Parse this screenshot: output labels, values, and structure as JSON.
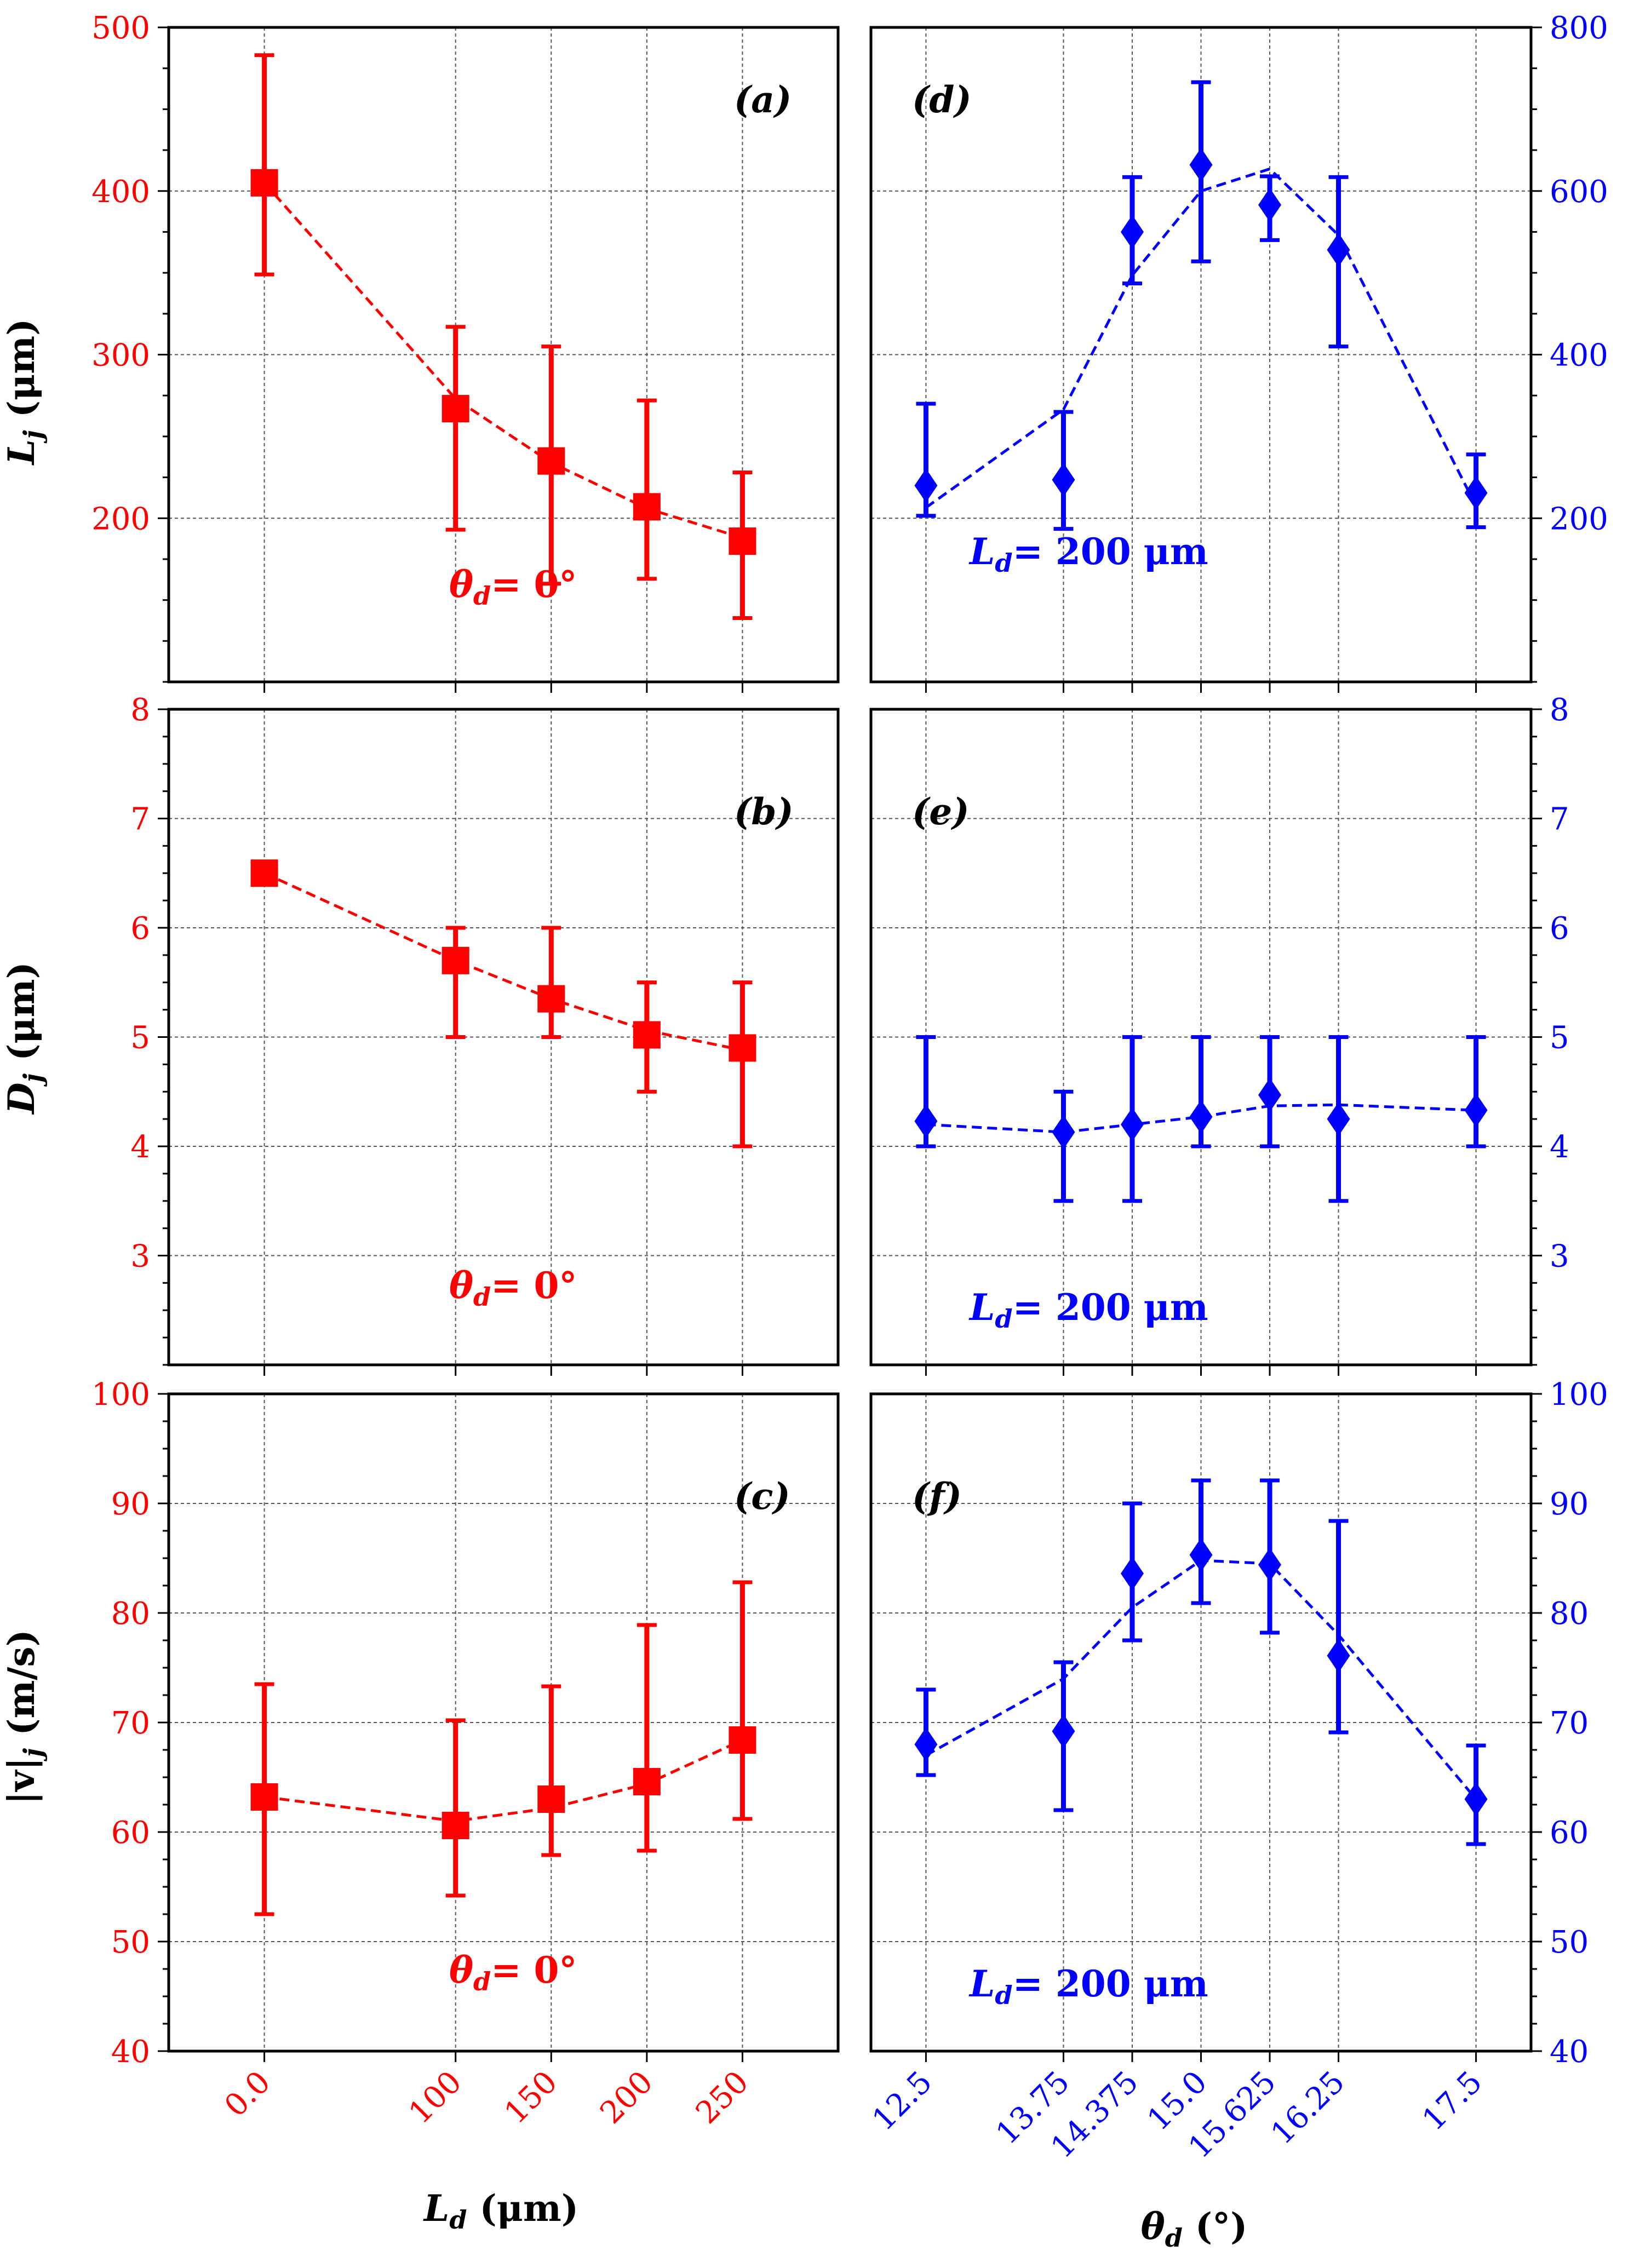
{
  "colors": {
    "left": "#ff0000",
    "right": "#0000ff",
    "frame": "#000000",
    "grid": "#555555"
  },
  "x_axes": {
    "left": {
      "label_var": "L",
      "label_sub": "d",
      "label_unit": " (μm)",
      "tick_values": [
        0,
        100,
        150,
        200,
        250
      ],
      "tick_labels": [
        "0.0",
        "100",
        "150",
        "200",
        "250"
      ]
    },
    "right": {
      "label_var": "θ",
      "label_sub": "d",
      "label_unit": " (°)",
      "tick_values": [
        12.5,
        13.75,
        14.375,
        15.0,
        15.625,
        16.25,
        17.5
      ],
      "tick_labels": [
        "12.5",
        "13.75",
        "14.375",
        "15.0",
        "15.625",
        "16.25",
        "17.5"
      ]
    }
  },
  "chart_data": [
    {
      "id": "a",
      "panel_label": "(a)",
      "type": "line",
      "color": "#ff0000",
      "marker": "square",
      "ylabel_var": "L",
      "ylabel_sub": "j",
      "ylabel_unit": " (μm)",
      "ylim": [
        100,
        500
      ],
      "y_ticks": [
        200,
        300,
        400,
        500
      ],
      "y_tick_labels": [
        "200",
        "300",
        "400",
        "500"
      ],
      "annotation_var": "θ",
      "annotation_sub": "d",
      "annotation_rest": "= 0°",
      "x": [
        0,
        100,
        150,
        200,
        250
      ],
      "y": [
        405,
        267,
        235,
        207,
        186
      ],
      "err_low": [
        349,
        193,
        160,
        163,
        139
      ],
      "err_high": [
        483,
        317,
        305,
        272,
        228
      ],
      "fit": [
        [
          0,
          405
        ],
        [
          100,
          273
        ],
        [
          150,
          234
        ],
        [
          200,
          206
        ],
        [
          250,
          188
        ]
      ]
    },
    {
      "id": "b",
      "panel_label": "(b)",
      "type": "line",
      "color": "#ff0000",
      "marker": "square",
      "ylabel_var": "D",
      "ylabel_sub": "j",
      "ylabel_unit": " (μm)",
      "ylim": [
        2,
        8
      ],
      "y_ticks": [
        3,
        4,
        5,
        6,
        7,
        8
      ],
      "y_tick_labels": [
        "3",
        "4",
        "5",
        "6",
        "7",
        "8"
      ],
      "annotation_var": "θ",
      "annotation_sub": "d",
      "annotation_rest": "= 0°",
      "x": [
        0,
        100,
        150,
        200,
        250
      ],
      "y": [
        6.5,
        5.7,
        5.35,
        5.02,
        4.9
      ],
      "err_low": [
        6.5,
        5.0,
        5.0,
        4.5,
        4.0
      ],
      "err_high": [
        6.5,
        6.0,
        6.0,
        5.5,
        5.5
      ],
      "fit": [
        [
          0,
          6.5
        ],
        [
          100,
          5.7
        ],
        [
          150,
          5.35
        ],
        [
          200,
          5.06
        ],
        [
          250,
          4.88
        ]
      ]
    },
    {
      "id": "c",
      "panel_label": "(c)",
      "type": "line",
      "color": "#ff0000",
      "marker": "square",
      "ylabel_var": "|v|",
      "ylabel_sub": "j",
      "ylabel_unit": " (m/s)",
      "ylim": [
        40,
        100
      ],
      "y_ticks": [
        40,
        50,
        60,
        70,
        80,
        90,
        100
      ],
      "y_tick_labels": [
        "40",
        "50",
        "60",
        "70",
        "80",
        "90",
        "100"
      ],
      "annotation_var": "θ",
      "annotation_sub": "d",
      "annotation_rest": "= 0°",
      "x": [
        0,
        100,
        150,
        200,
        250
      ],
      "y": [
        63.2,
        60.6,
        63.0,
        64.6,
        68.4
      ],
      "err_low": [
        52.5,
        54.2,
        57.9,
        58.3,
        61.2
      ],
      "err_high": [
        73.5,
        70.2,
        73.3,
        78.9,
        82.8
      ],
      "fit": [
        [
          0,
          63.2
        ],
        [
          100,
          61.0
        ],
        [
          150,
          62.2
        ],
        [
          200,
          64.4
        ],
        [
          250,
          68.4
        ]
      ]
    },
    {
      "id": "d",
      "panel_label": "(d)",
      "type": "line",
      "color": "#0000ff",
      "marker": "diamond",
      "ylabel_var": "",
      "ylabel_sub": "",
      "ylabel_unit": "",
      "ylim": [
        0,
        800
      ],
      "y_ticks": [
        200,
        400,
        600,
        800
      ],
      "y_tick_labels": [
        "200",
        "400",
        "600",
        "800"
      ],
      "annotation_var": "L",
      "annotation_sub": "d",
      "annotation_rest": "= 200 μm",
      "x": [
        12.5,
        13.75,
        14.375,
        15.0,
        15.625,
        16.25,
        17.5
      ],
      "y": [
        240,
        247,
        550,
        632,
        583,
        528,
        231
      ],
      "err_low": [
        203,
        187,
        487,
        514,
        540,
        410,
        189
      ],
      "err_high": [
        340,
        330,
        617,
        733,
        618,
        617,
        278
      ],
      "fit": [
        [
          12.5,
          213
        ],
        [
          13.75,
          333
        ],
        [
          14.375,
          497
        ],
        [
          15.0,
          600
        ],
        [
          15.625,
          627
        ],
        [
          16.25,
          546
        ],
        [
          17.5,
          215
        ]
      ]
    },
    {
      "id": "e",
      "panel_label": "(e)",
      "type": "line",
      "color": "#0000ff",
      "marker": "diamond",
      "ylabel_var": "",
      "ylabel_sub": "",
      "ylabel_unit": "",
      "ylim": [
        2,
        8
      ],
      "y_ticks": [
        3,
        4,
        5,
        6,
        7,
        8
      ],
      "y_tick_labels": [
        "3",
        "4",
        "5",
        "6",
        "7",
        "8"
      ],
      "annotation_var": "L",
      "annotation_sub": "d",
      "annotation_rest": "= 200 μm",
      "x": [
        12.5,
        13.75,
        14.375,
        15.0,
        15.625,
        16.25,
        17.5
      ],
      "y": [
        4.23,
        4.13,
        4.2,
        4.27,
        4.47,
        4.25,
        4.33
      ],
      "err_low": [
        4.0,
        3.5,
        3.5,
        4.0,
        4.0,
        3.5,
        4.0
      ],
      "err_high": [
        5.0,
        4.5,
        5.0,
        5.0,
        5.0,
        5.0,
        5.0
      ],
      "fit": [
        [
          12.5,
          4.2
        ],
        [
          13.75,
          4.13
        ],
        [
          14.375,
          4.2
        ],
        [
          15.0,
          4.27
        ],
        [
          15.625,
          4.37
        ],
        [
          16.25,
          4.38
        ],
        [
          17.5,
          4.33
        ]
      ]
    },
    {
      "id": "f",
      "panel_label": "(f)",
      "type": "line",
      "color": "#0000ff",
      "marker": "diamond",
      "ylabel_var": "",
      "ylabel_sub": "",
      "ylabel_unit": "",
      "ylim": [
        40,
        100
      ],
      "y_ticks": [
        40,
        50,
        60,
        70,
        80,
        90,
        100
      ],
      "y_tick_labels": [
        "40",
        "50",
        "60",
        "70",
        "80",
        "90",
        "100"
      ],
      "annotation_var": "L",
      "annotation_sub": "d",
      "annotation_rest": "= 200 μm",
      "x": [
        12.5,
        13.75,
        14.375,
        15.0,
        15.625,
        16.25,
        17.5
      ],
      "y": [
        68.0,
        69.2,
        83.6,
        85.3,
        84.4,
        76.1,
        63.0
      ],
      "err_low": [
        65.2,
        62.0,
        77.5,
        80.9,
        78.2,
        69.1,
        58.9
      ],
      "err_high": [
        73.0,
        75.5,
        90.0,
        92.1,
        92.1,
        88.4,
        67.9
      ],
      "fit": [
        [
          12.5,
          67.0
        ],
        [
          13.75,
          74.0
        ],
        [
          14.375,
          80.5
        ],
        [
          15.0,
          84.8
        ],
        [
          15.625,
          84.5
        ],
        [
          16.25,
          78.0
        ],
        [
          17.5,
          63.0
        ]
      ]
    }
  ]
}
